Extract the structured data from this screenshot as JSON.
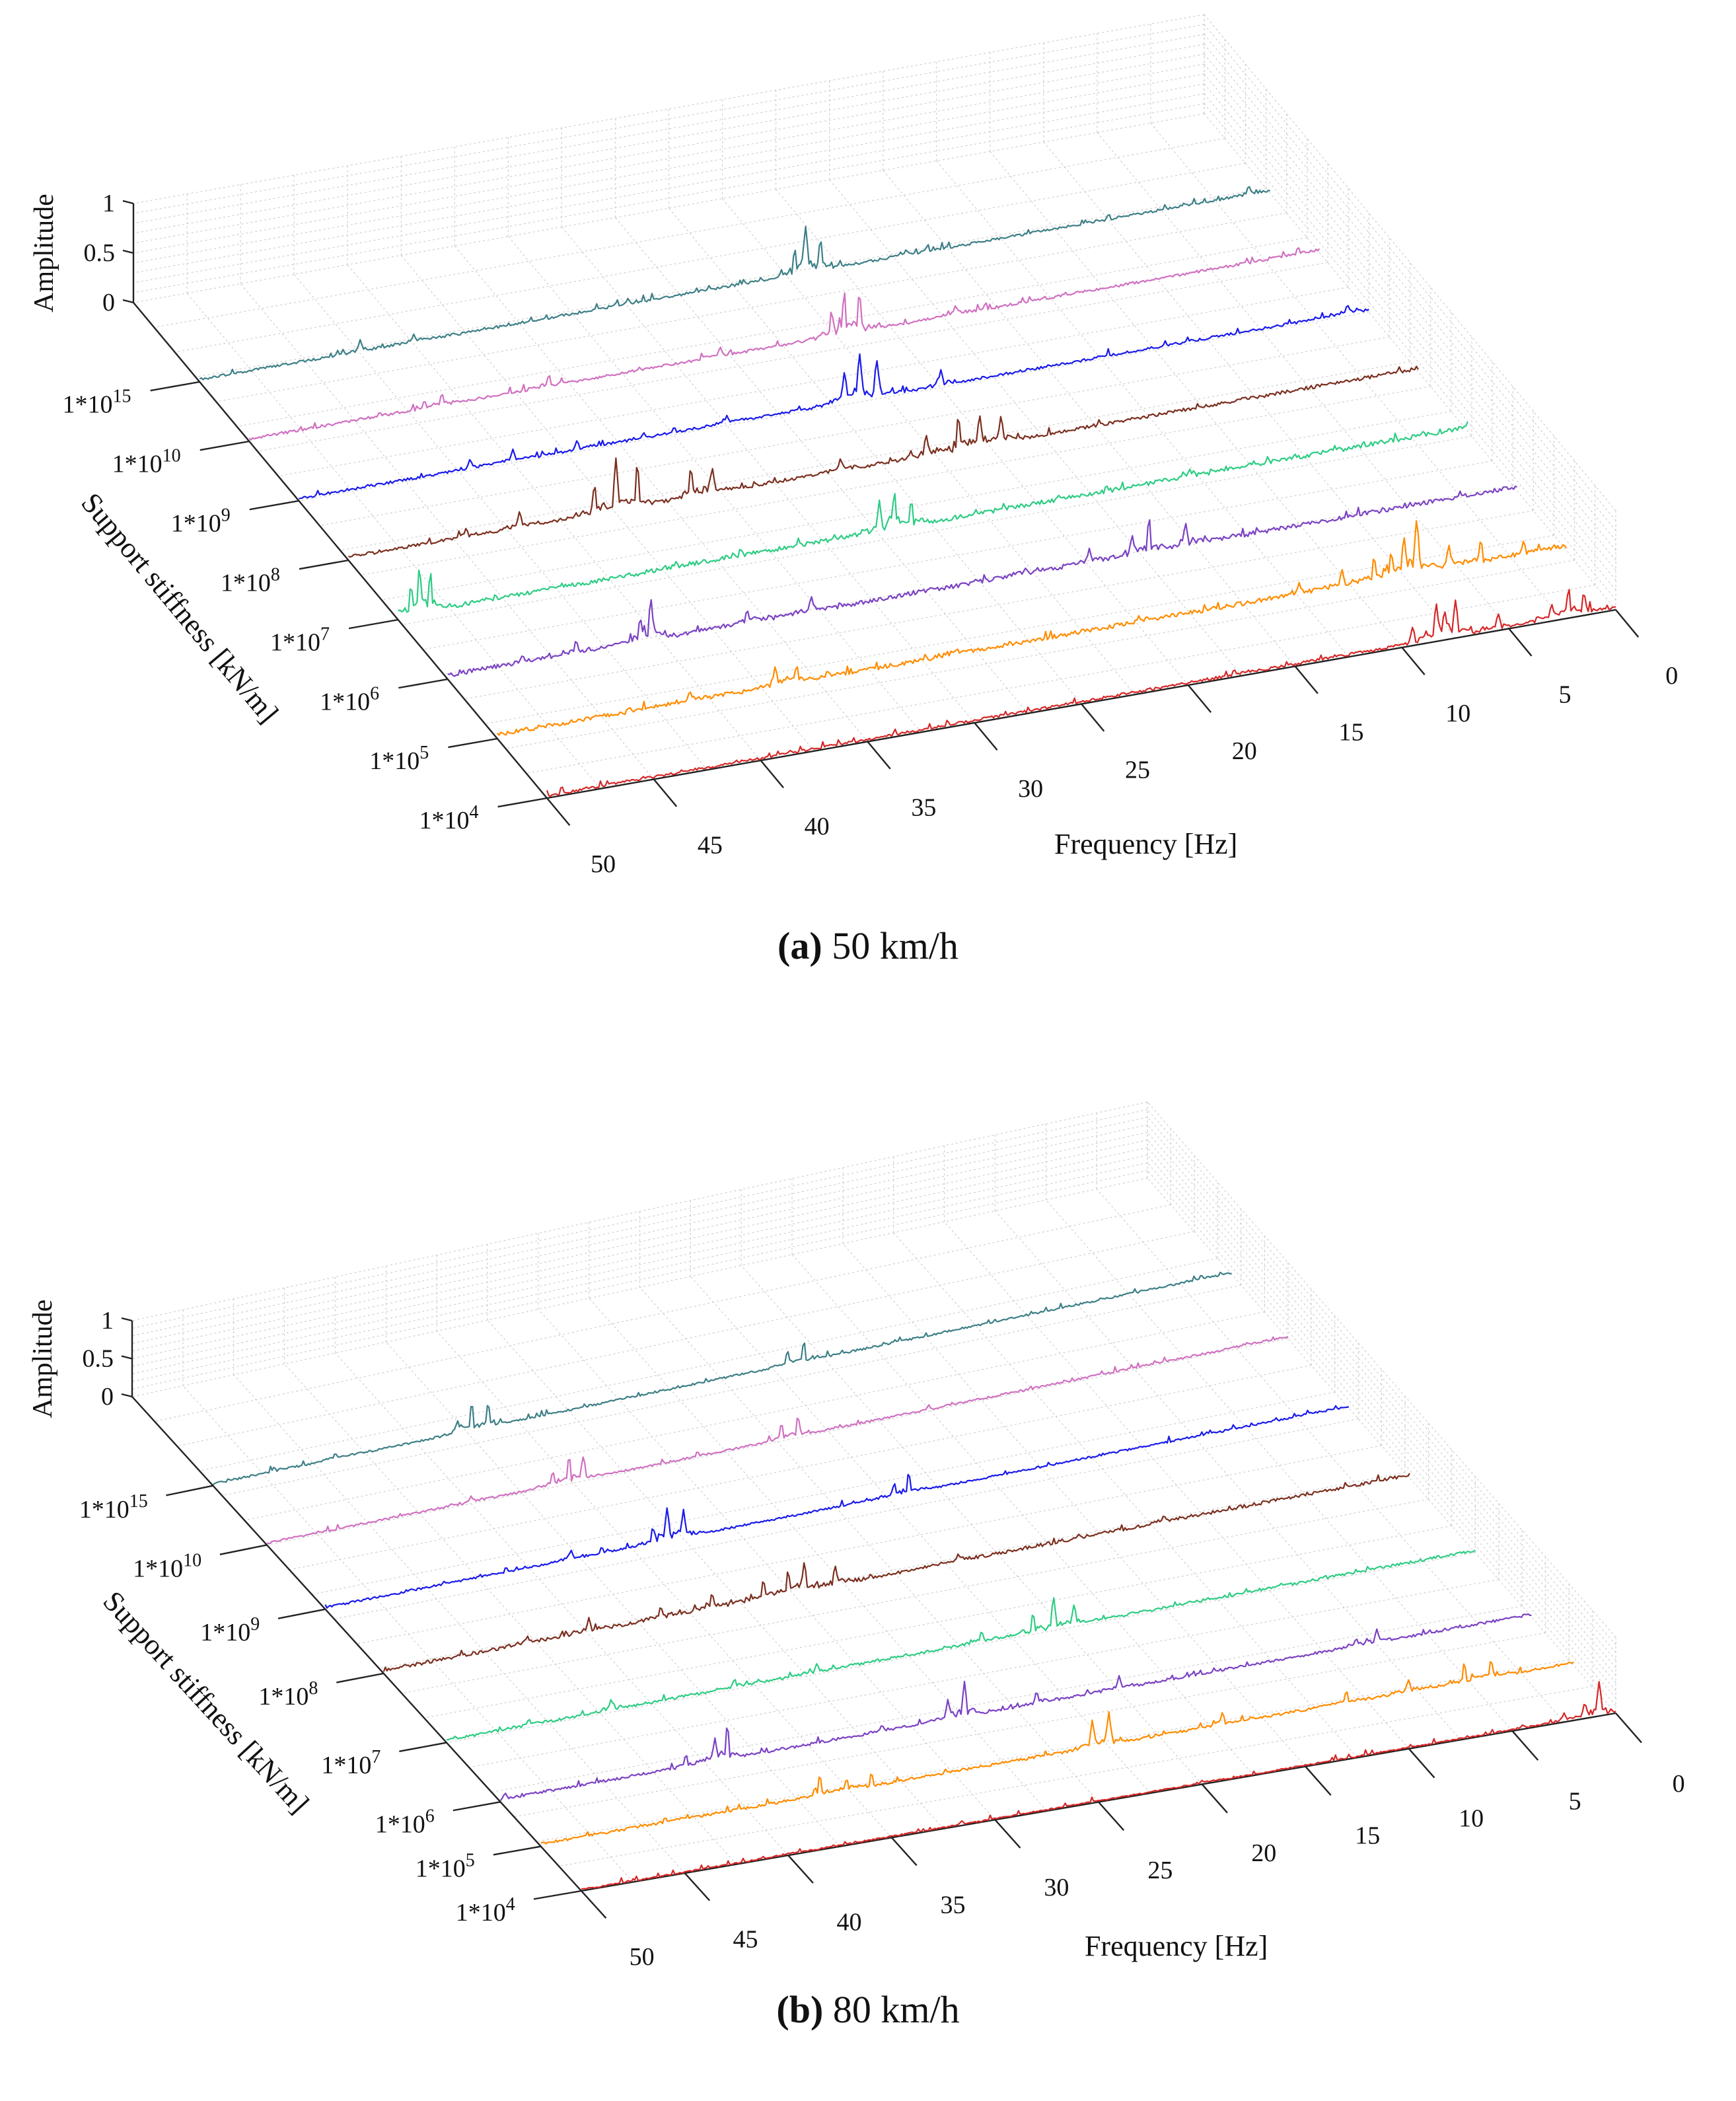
{
  "figure": {
    "panels": [
      {
        "caption_tag": "a",
        "caption_text": "50 km/h"
      },
      {
        "caption_tag": "b",
        "caption_text": "80 km/h"
      }
    ]
  },
  "chart_data": [
    {
      "type": "line",
      "variant": "3d-waterfall",
      "title": "",
      "caption": "(a) 50 km/h",
      "xlabel": "Frequency [Hz]",
      "ylabel": "Support stiffness [kN/m]",
      "zlabel": "Amplitude",
      "xlim": [
        0,
        50
      ],
      "zlim": [
        0,
        1
      ],
      "x_ticks": [
        0,
        5,
        10,
        15,
        20,
        25,
        30,
        35,
        40,
        45,
        50
      ],
      "z_ticks": [
        "0",
        "0.5",
        "1"
      ],
      "y_ticks": [
        {
          "base": "1*10",
          "exp": "4"
        },
        {
          "base": "1*10",
          "exp": "5"
        },
        {
          "base": "1*10",
          "exp": "6"
        },
        {
          "base": "1*10",
          "exp": "7"
        },
        {
          "base": "1*10",
          "exp": "8"
        },
        {
          "base": "1*10",
          "exp": "9"
        },
        {
          "base": "1*10",
          "exp": "10"
        },
        {
          "base": "1*10",
          "exp": "15"
        }
      ],
      "series": [
        {
          "name": "1*10^4",
          "color": "#d62728",
          "baseline": 0.03,
          "peaks": [
            [
              1.5,
              0.24
            ],
            [
              2.2,
              0.32
            ],
            [
              3.0,
              0.18
            ],
            [
              5.5,
              0.18
            ],
            [
              7.5,
              0.36
            ],
            [
              8.0,
              0.3
            ],
            [
              8.4,
              0.4
            ],
            [
              9.5,
              0.2
            ],
            [
              17.0,
              0.04
            ],
            [
              30.0,
              0.03
            ],
            [
              45.5,
              0.05
            ],
            [
              47.0,
              0.04
            ]
          ]
        },
        {
          "name": "1*10^5",
          "color": "#ff8c00",
          "baseline": 0.05,
          "peaks": [
            [
              2.0,
              0.18
            ],
            [
              4.0,
              0.28
            ],
            [
              5.5,
              0.28
            ],
            [
              7.0,
              0.6
            ],
            [
              7.6,
              0.45
            ],
            [
              8.2,
              0.3
            ],
            [
              9.0,
              0.3
            ],
            [
              10.5,
              0.22
            ],
            [
              12.5,
              0.15
            ],
            [
              20.0,
              0.1
            ],
            [
              28.5,
              0.1
            ],
            [
              36.0,
              0.22
            ],
            [
              37.0,
              0.25
            ],
            [
              41.0,
              0.15
            ]
          ]
        },
        {
          "name": "1*10^6",
          "color": "#7b42c4",
          "baseline": 0.05,
          "peaks": [
            [
              15.5,
              0.28
            ],
            [
              17.2,
              0.4
            ],
            [
              18.0,
              0.25
            ],
            [
              20.0,
              0.18
            ],
            [
              23.0,
              0.1
            ],
            [
              33.0,
              0.2
            ],
            [
              36.0,
              0.18
            ],
            [
              40.5,
              0.45
            ],
            [
              41.0,
              0.3
            ],
            [
              44.0,
              0.18
            ],
            [
              46.5,
              0.12
            ]
          ]
        },
        {
          "name": "1*10^7",
          "color": "#2ecc84",
          "baseline": 0.05,
          "peaks": [
            [
              10.0,
              0.08
            ],
            [
              13.0,
              0.12
            ],
            [
              26.0,
              0.3
            ],
            [
              26.8,
              0.42
            ],
            [
              27.5,
              0.35
            ],
            [
              34.0,
              0.12
            ],
            [
              37.0,
              0.1
            ],
            [
              48.5,
              0.4
            ],
            [
              49.0,
              0.5
            ],
            [
              49.4,
              0.35
            ]
          ]
        },
        {
          "name": "1*10^8",
          "color": "#7b2f1f",
          "baseline": 0.04,
          "peaks": [
            [
              19.5,
              0.3
            ],
            [
              20.5,
              0.35
            ],
            [
              21.5,
              0.4
            ],
            [
              23.0,
              0.25
            ],
            [
              27.0,
              0.16
            ],
            [
              33.0,
              0.3
            ],
            [
              34.0,
              0.35
            ],
            [
              36.5,
              0.48
            ],
            [
              37.5,
              0.55
            ],
            [
              38.5,
              0.35
            ],
            [
              42.0,
              0.2
            ],
            [
              44.5,
              0.12
            ]
          ]
        },
        {
          "name": "1*10^9",
          "color": "#1a1aeb",
          "baseline": 0.03,
          "peaks": [
            [
              1.0,
              0.12
            ],
            [
              20.0,
              0.18
            ],
            [
              23.0,
              0.4
            ],
            [
              23.8,
              0.5
            ],
            [
              24.5,
              0.35
            ],
            [
              30.0,
              0.1
            ],
            [
              37.0,
              0.12
            ],
            [
              40.0,
              0.14
            ],
            [
              42.0,
              0.12
            ]
          ]
        },
        {
          "name": "1*10^10",
          "color": "#d070c0",
          "baseline": 0.03,
          "peaks": [
            [
              1.0,
              0.1
            ],
            [
              17.0,
              0.12
            ],
            [
              21.5,
              0.42
            ],
            [
              22.2,
              0.46
            ],
            [
              22.8,
              0.3
            ],
            [
              28.0,
              0.12
            ],
            [
              36.0,
              0.15
            ],
            [
              41.0,
              0.15
            ]
          ]
        },
        {
          "name": "1*10^15",
          "color": "#3d7f86",
          "baseline": 0.03,
          "peaks": [
            [
              1.0,
              0.12
            ],
            [
              17.0,
              0.08
            ],
            [
              21.0,
              0.35
            ],
            [
              21.7,
              0.5
            ],
            [
              22.2,
              0.3
            ],
            [
              30.0,
              0.08
            ],
            [
              40.0,
              0.1
            ],
            [
              42.5,
              0.14
            ]
          ]
        }
      ]
    },
    {
      "type": "line",
      "variant": "3d-waterfall",
      "title": "",
      "caption": "(b) 80 km/h",
      "xlabel": "Frequency [Hz]",
      "ylabel": "Support stiffness [kN/m]",
      "zlabel": "Amplitude",
      "xlim": [
        0,
        50
      ],
      "zlim": [
        0,
        1
      ],
      "x_ticks": [
        0,
        5,
        10,
        15,
        20,
        25,
        30,
        35,
        40,
        45,
        50
      ],
      "z_ticks": [
        "0",
        "0.5",
        "1"
      ],
      "y_ticks": [
        {
          "base": "1*10",
          "exp": "4"
        },
        {
          "base": "1*10",
          "exp": "5"
        },
        {
          "base": "1*10",
          "exp": "6"
        },
        {
          "base": "1*10",
          "exp": "7"
        },
        {
          "base": "1*10",
          "exp": "8"
        },
        {
          "base": "1*10",
          "exp": "9"
        },
        {
          "base": "1*10",
          "exp": "10"
        },
        {
          "base": "1*10",
          "exp": "15"
        }
      ],
      "series": [
        {
          "name": "1*10^4",
          "color": "#d62728",
          "baseline": 0.02,
          "peaks": [
            [
              0.8,
              0.45
            ],
            [
              1.5,
              0.22
            ],
            [
              2.5,
              0.12
            ],
            [
              4.5,
              0.06
            ],
            [
              20.0,
              0.05
            ],
            [
              40.0,
              0.03
            ]
          ]
        },
        {
          "name": "1*10^5",
          "color": "#ff8c00",
          "baseline": 0.04,
          "peaks": [
            [
              4.0,
              0.28
            ],
            [
              5.3,
              0.3
            ],
            [
              8.0,
              0.2
            ],
            [
              11.0,
              0.2
            ],
            [
              17.0,
              0.2
            ],
            [
              22.5,
              0.45
            ],
            [
              23.3,
              0.4
            ],
            [
              34.0,
              0.22
            ],
            [
              35.2,
              0.2
            ],
            [
              36.5,
              0.32
            ],
            [
              44.0,
              0.1
            ]
          ]
        },
        {
          "name": "1*10^6",
          "color": "#7b42c4",
          "baseline": 0.04,
          "peaks": [
            [
              7.5,
              0.2
            ],
            [
              8.5,
              0.14
            ],
            [
              20.0,
              0.2
            ],
            [
              24.0,
              0.2
            ],
            [
              27.5,
              0.48
            ],
            [
              28.3,
              0.3
            ],
            [
              31.5,
              0.12
            ],
            [
              39.0,
              0.5
            ],
            [
              39.6,
              0.34
            ],
            [
              41.0,
              0.2
            ]
          ]
        },
        {
          "name": "1*10^7",
          "color": "#2ecc84",
          "baseline": 0.04,
          "peaks": [
            [
              13.0,
              0.06
            ],
            [
              19.5,
              0.3
            ],
            [
              20.5,
              0.46
            ],
            [
              21.5,
              0.3
            ],
            [
              24.0,
              0.18
            ],
            [
              32.0,
              0.15
            ],
            [
              36.0,
              0.15
            ],
            [
              42.0,
              0.18
            ],
            [
              46.0,
              0.12
            ]
          ]
        },
        {
          "name": "1*10^8",
          "color": "#7b2f1f",
          "baseline": 0.05,
          "peaks": [
            [
              12.0,
              0.12
            ],
            [
              22.0,
              0.14
            ],
            [
              28.0,
              0.3
            ],
            [
              29.5,
              0.42
            ],
            [
              30.3,
              0.36
            ],
            [
              31.5,
              0.3
            ],
            [
              34.0,
              0.25
            ],
            [
              36.5,
              0.2
            ],
            [
              40.0,
              0.22
            ],
            [
              43.0,
              0.14
            ]
          ]
        },
        {
          "name": "1*10^9",
          "color": "#1a1aeb",
          "baseline": 0.03,
          "peaks": [
            [
              2.0,
              0.06
            ],
            [
              21.5,
              0.3
            ],
            [
              22.2,
              0.2
            ],
            [
              32.5,
              0.36
            ],
            [
              33.3,
              0.45
            ],
            [
              34.0,
              0.25
            ],
            [
              38.0,
              0.15
            ]
          ]
        },
        {
          "name": "1*10^10",
          "color": "#d070c0",
          "baseline": 0.03,
          "peaks": [
            [
              2.0,
              0.06
            ],
            [
              24.0,
              0.3
            ],
            [
              24.8,
              0.25
            ],
            [
              34.5,
              0.32
            ],
            [
              35.2,
              0.38
            ],
            [
              36.0,
              0.22
            ],
            [
              40.0,
              0.1
            ]
          ]
        },
        {
          "name": "1*10^15",
          "color": "#3d7f86",
          "baseline": 0.03,
          "peaks": [
            [
              1.5,
              0.08
            ],
            [
              21.0,
              0.3
            ],
            [
              21.8,
              0.22
            ],
            [
              36.5,
              0.35
            ],
            [
              37.3,
              0.4
            ],
            [
              38.0,
              0.2
            ],
            [
              44.0,
              0.1
            ],
            [
              47.0,
              0.08
            ]
          ]
        }
      ]
    }
  ]
}
